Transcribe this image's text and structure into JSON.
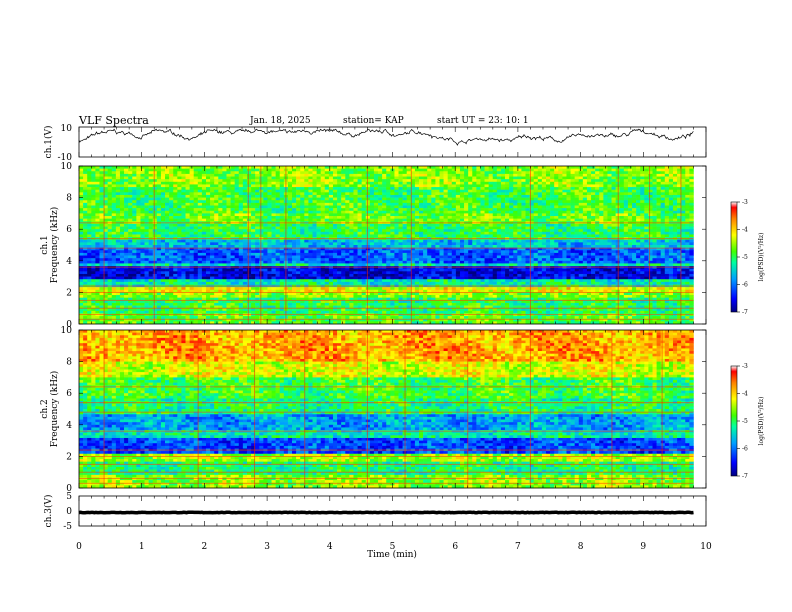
{
  "header": {
    "title": "VLF Spectra",
    "date": "Jan. 18, 2025",
    "station": "station= KAP",
    "start": "start  UT =   23: 10: 1"
  },
  "chart_data": [
    {
      "type": "line",
      "panel": "ch1-waveform",
      "ylabel": "ch.1(V)",
      "ylim": [
        -10,
        10
      ],
      "yticks": [
        "10",
        "-10"
      ],
      "xlim": [
        0,
        10
      ],
      "data_end_min": 9.8,
      "signal_range": [
        -5,
        8
      ]
    },
    {
      "type": "heatmap",
      "panel": "ch1-spectrogram",
      "ylabel": "ch.1\nFrequency (kHz)",
      "ylabel_line1": "ch.1",
      "ylabel_line2": "Frequency (kHz)",
      "ylim": [
        0,
        10
      ],
      "yticks": [
        "0",
        "2",
        "4",
        "6",
        "8",
        "10"
      ],
      "xlim": [
        0,
        10
      ],
      "data_end_min": 9.8,
      "colorbar": {
        "label": "log(PSD)(V²/Hz)",
        "ticks": [
          "-3",
          "-4",
          "-5",
          "-6",
          "-7"
        ],
        "range": [
          -7,
          -3
        ]
      },
      "bands": [
        {
          "from": 0,
          "to": 0.6,
          "level": -4.8
        },
        {
          "from": 0.6,
          "to": 1.6,
          "level": -5.0
        },
        {
          "from": 1.6,
          "to": 2.0,
          "level": -4.6
        },
        {
          "from": 2.0,
          "to": 2.4,
          "level": -4.2
        },
        {
          "from": 2.4,
          "to": 2.8,
          "level": -5.3
        },
        {
          "from": 2.8,
          "to": 3.6,
          "level": -6.6
        },
        {
          "from": 3.6,
          "to": 3.9,
          "level": -5.4
        },
        {
          "from": 3.9,
          "to": 4.8,
          "level": -6.1
        },
        {
          "from": 4.8,
          "to": 5.4,
          "level": -5.6
        },
        {
          "from": 5.4,
          "to": 6.4,
          "level": -5.0
        },
        {
          "from": 6.4,
          "to": 7.0,
          "level": -4.7
        },
        {
          "from": 7.0,
          "to": 8.6,
          "level": -4.9
        },
        {
          "from": 8.6,
          "to": 10,
          "level": -4.6
        }
      ]
    },
    {
      "type": "heatmap",
      "panel": "ch2-spectrogram",
      "ylabel": "ch.2\nFrequency (kHz)",
      "ylabel_line1": "ch.2",
      "ylabel_line2": "Frequency (kHz)",
      "ylim": [
        0,
        10
      ],
      "yticks": [
        "0",
        "2",
        "4",
        "6",
        "8",
        "10"
      ],
      "xlim": [
        0,
        10
      ],
      "data_end_min": 9.8,
      "colorbar": {
        "label": "log(PSD)(V²/Hz)",
        "ticks": [
          "-3",
          "-4",
          "-5",
          "-6",
          "-7"
        ],
        "range": [
          -7,
          -3
        ]
      },
      "bands": [
        {
          "from": 0,
          "to": 0.8,
          "level": -4.6
        },
        {
          "from": 0.8,
          "to": 1.6,
          "level": -5.1
        },
        {
          "from": 1.6,
          "to": 2.2,
          "level": -4.5
        },
        {
          "from": 2.2,
          "to": 3.2,
          "level": -6.2
        },
        {
          "from": 3.2,
          "to": 3.7,
          "level": -5.3
        },
        {
          "from": 3.7,
          "to": 4.6,
          "level": -5.8
        },
        {
          "from": 4.6,
          "to": 5.6,
          "level": -5.1
        },
        {
          "from": 5.6,
          "to": 7.0,
          "level": -4.9
        },
        {
          "from": 7.0,
          "to": 8.0,
          "level": -4.3
        },
        {
          "from": 8.0,
          "to": 10,
          "level": -3.8
        }
      ]
    },
    {
      "type": "line",
      "panel": "ch3-waveform",
      "ylabel": "ch.3(V)",
      "ylim": [
        -5,
        5
      ],
      "yticks": [
        "5",
        "0",
        "-5"
      ],
      "xlim": [
        0,
        10
      ],
      "data_end_min": 9.8,
      "signal_range": [
        -1.2,
        0.2
      ]
    }
  ],
  "xaxis": {
    "label": "Time  (min)",
    "ticks": [
      "0",
      "1",
      "2",
      "3",
      "4",
      "5",
      "6",
      "7",
      "8",
      "9",
      "10"
    ]
  }
}
